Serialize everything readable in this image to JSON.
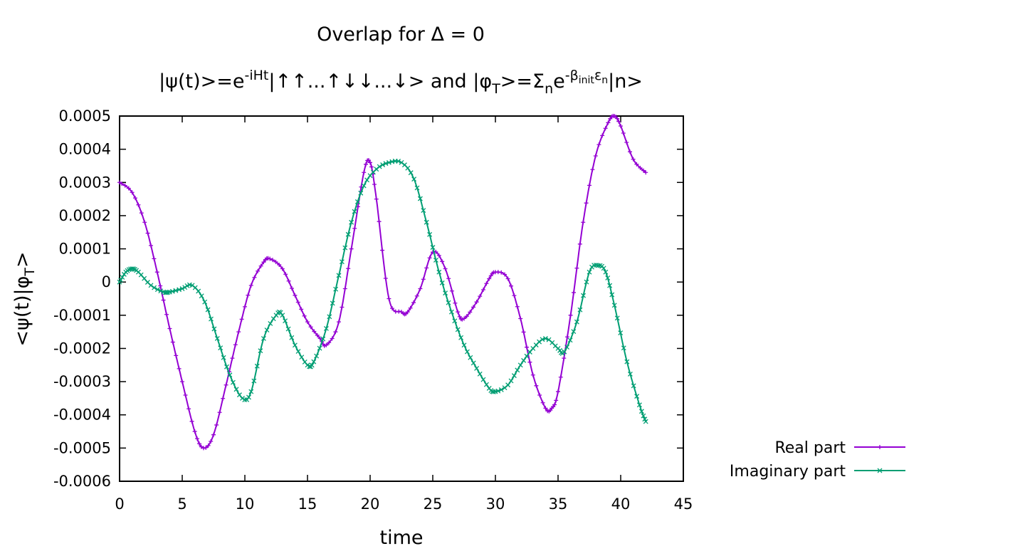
{
  "chart_data": {
    "type": "line",
    "title_line1": "Overlap for Δ = 0",
    "title_line2": {
      "psi_ket": "|ψ(t)>=e",
      "exp": "-iHt",
      "spins": "|↑↑...↑↓↓...↓> and |φ",
      "sub_T": "T",
      "eq": ">=Σ",
      "sub_n": "n",
      "e": "e",
      "exp_minus": "-",
      "beta": "β",
      "init": "init",
      "eps": "ε",
      "eps_n": "n",
      "ket_n": "|n>"
    },
    "xlabel": "time",
    "ylabel": {
      "main": "<ψ(t)|φ",
      "sub": "T",
      "end": ">"
    },
    "xlim": [
      0,
      45
    ],
    "ylim": [
      -0.0006,
      0.0005
    ],
    "xticks": [
      "0",
      "5",
      "10",
      "15",
      "20",
      "25",
      "30",
      "35",
      "40",
      "45"
    ],
    "xtick_values": [
      0,
      5,
      10,
      15,
      20,
      25,
      30,
      35,
      40,
      45
    ],
    "yticks": [
      "0.0005",
      "0.0004",
      "0.0003",
      "0.0002",
      "0.0001",
      "0",
      "-0.0001",
      "-0.0002",
      "-0.0003",
      "-0.0004",
      "-0.0005",
      "-0.0006"
    ],
    "ytick_values": [
      0.0005,
      0.0004,
      0.0003,
      0.0002,
      0.0001,
      0,
      -0.0001,
      -0.0002,
      -0.0003,
      -0.0004,
      -0.0005,
      -0.0006
    ],
    "grid": false,
    "legend_position": "outside-right",
    "series": [
      {
        "name": "Real part",
        "color": "#9400d3",
        "marker": "plus",
        "x": [
          0,
          1,
          2,
          3,
          4,
          5,
          6,
          6.7,
          7.5,
          8.5,
          9.5,
          10.5,
          11.5,
          12,
          13,
          14,
          15,
          16,
          16.5,
          17.5,
          18.5,
          19.5,
          20,
          20.5,
          21.5,
          22.5,
          23,
          24,
          25,
          26,
          27,
          27.5,
          28.5,
          29.5,
          30,
          31,
          32,
          33,
          34,
          34.5,
          35,
          36,
          37,
          38,
          39,
          39.5,
          40,
          41,
          42
        ],
        "y": [
          0.0003,
          0.00027,
          0.00018,
          3e-05,
          -0.00014,
          -0.0003,
          -0.00045,
          -0.0005,
          -0.00046,
          -0.00031,
          -0.00015,
          -1e-05,
          6e-05,
          7e-05,
          4e-05,
          -4e-05,
          -0.00012,
          -0.00017,
          -0.00019,
          -0.00012,
          0.0001,
          0.00033,
          0.00036,
          0.00025,
          -5e-05,
          -9e-05,
          -9e-05,
          -2e-05,
          9e-05,
          4e-05,
          -9e-05,
          -0.00011,
          -6e-05,
          1e-05,
          3e-05,
          1e-05,
          -0.00011,
          -0.00028,
          -0.00038,
          -0.00038,
          -0.00033,
          -0.0001,
          0.00018,
          0.00038,
          0.00048,
          0.0005,
          0.00047,
          0.00037,
          0.00033
        ]
      },
      {
        "name": "Imaginary part",
        "color": "#009e73",
        "marker": "cross",
        "x": [
          0,
          0.5,
          1,
          1.5,
          2.5,
          3.5,
          4,
          5,
          5.8,
          6.8,
          7.8,
          8.8,
          9.8,
          10.5,
          11.5,
          12.5,
          13,
          14,
          15,
          15.5,
          16.5,
          17.5,
          18.5,
          19.5,
          20.5,
          21.5,
          22.5,
          23.5,
          24.5,
          25.5,
          26.5,
          27.5,
          28.5,
          29.5,
          30,
          31,
          32,
          33,
          34,
          35,
          35.5,
          36.5,
          37.5,
          38.2,
          38.8,
          39.5,
          40.5,
          41.5,
          42
        ],
        "y": [
          0,
          3e-05,
          4e-05,
          3e-05,
          -1e-05,
          -3e-05,
          -3e-05,
          -2e-05,
          -1e-05,
          -6e-05,
          -0.00017,
          -0.00028,
          -0.00035,
          -0.00033,
          -0.00017,
          -0.0001,
          -0.0001,
          -0.00019,
          -0.00025,
          -0.00024,
          -0.00014,
          2e-05,
          0.00018,
          0.00029,
          0.00034,
          0.00036,
          0.00036,
          0.00031,
          0.00018,
          3e-05,
          -9e-05,
          -0.00019,
          -0.00026,
          -0.00032,
          -0.00033,
          -0.00031,
          -0.00025,
          -0.0002,
          -0.00017,
          -0.0002,
          -0.00021,
          -0.00012,
          3e-05,
          5e-05,
          3e-05,
          -7e-05,
          -0.00024,
          -0.00037,
          -0.00042
        ]
      }
    ]
  }
}
